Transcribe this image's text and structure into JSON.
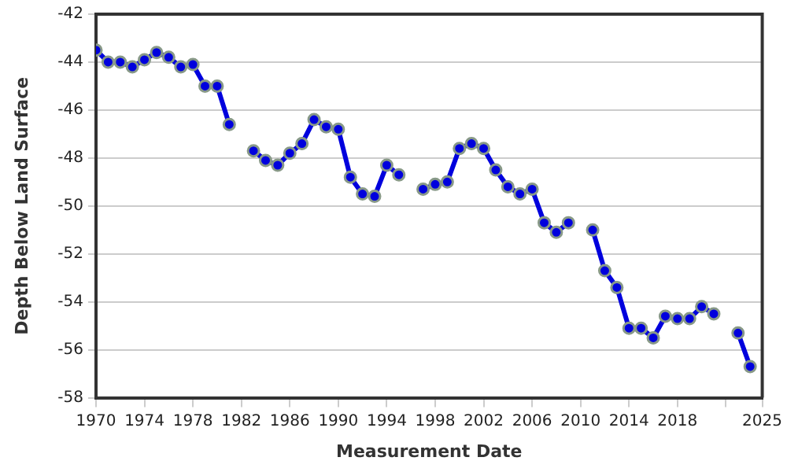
{
  "chart_data": {
    "type": "line",
    "xlabel": "Measurement Date",
    "ylabel": "Depth Below Land Surface",
    "x": [
      1970,
      1971,
      1972,
      1973,
      1974,
      1975,
      1976,
      1977,
      1978,
      1979,
      1980,
      1981,
      1982,
      1983,
      1984,
      1985,
      1986,
      1987,
      1988,
      1989,
      1990,
      1991,
      1992,
      1993,
      1994,
      1995,
      1996,
      1997,
      1998,
      1999,
      2000,
      2001,
      2002,
      2003,
      2004,
      2005,
      2006,
      2007,
      2008,
      2009,
      2010,
      2011,
      2012,
      2013,
      2014,
      2015,
      2016,
      2017,
      2018,
      2019,
      2020,
      2021,
      2022,
      2023,
      2024
    ],
    "series": [
      {
        "color": "#0000dd",
        "values": [
          -43.5,
          -44.0,
          -44.0,
          -44.2,
          -43.9,
          -43.6,
          -43.8,
          -44.2,
          -44.1,
          -45.0,
          -45.0,
          -46.6,
          null,
          -47.7,
          -48.1,
          -48.3,
          -47.8,
          -47.4,
          -46.4,
          -46.7,
          -46.8,
          -48.8,
          -49.5,
          -49.6,
          -48.3,
          -48.7,
          null,
          -49.3,
          -49.1,
          -49.0,
          -47.6,
          -47.4,
          -47.6,
          -48.5,
          -49.2,
          -49.5,
          -49.3,
          -50.7,
          -51.1,
          -50.7,
          null,
          -51.0,
          -52.7,
          -53.4,
          -55.1,
          -55.1,
          -55.5,
          -54.6,
          -54.7,
          -54.7,
          -54.2,
          -54.5,
          null,
          -55.3,
          -56.7
        ]
      }
    ],
    "xlim": [
      1970,
      2025
    ],
    "xticks": [
      1970,
      1974,
      1978,
      1982,
      1986,
      1990,
      1994,
      1998,
      2002,
      2006,
      2010,
      2014,
      2018,
      {
        "value": 2022,
        "label": null
      },
      2025
    ],
    "ylim": [
      -58,
      -42
    ],
    "yticks": [
      -58,
      -56,
      -54,
      -52,
      -50,
      -48,
      -46,
      -44,
      -42
    ],
    "grid": "y",
    "legend": false,
    "marker": "circle",
    "line_style": "solid"
  }
}
